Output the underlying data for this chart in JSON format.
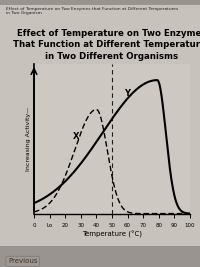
{
  "title": "Effect of Temperature on Two Enzymes\nThat Function at Different Temperatures\nin Two Different Organisms",
  "header_line1": "Effect of Temperature on Two Enzymes that Function at Different Temperatures",
  "header_line2": "in Two Organism",
  "xlabel": "Temperature (°C)",
  "ylabel": "Increasing Activity—",
  "footer_text": "Previous",
  "xlim": [
    0,
    100
  ],
  "x_ticks": [
    0,
    10,
    20,
    30,
    40,
    50,
    60,
    70,
    80,
    90,
    100
  ],
  "x_tick_labels": [
    "0",
    "Lo",
    "20",
    "30",
    "40",
    "50",
    "60",
    "70",
    "80",
    "90",
    "100"
  ],
  "outer_bg": "#9a9490",
  "inner_bg": "#c8c2bc",
  "plot_bg": "#cdc8c2",
  "label_X": "X",
  "label_Y": "Y"
}
